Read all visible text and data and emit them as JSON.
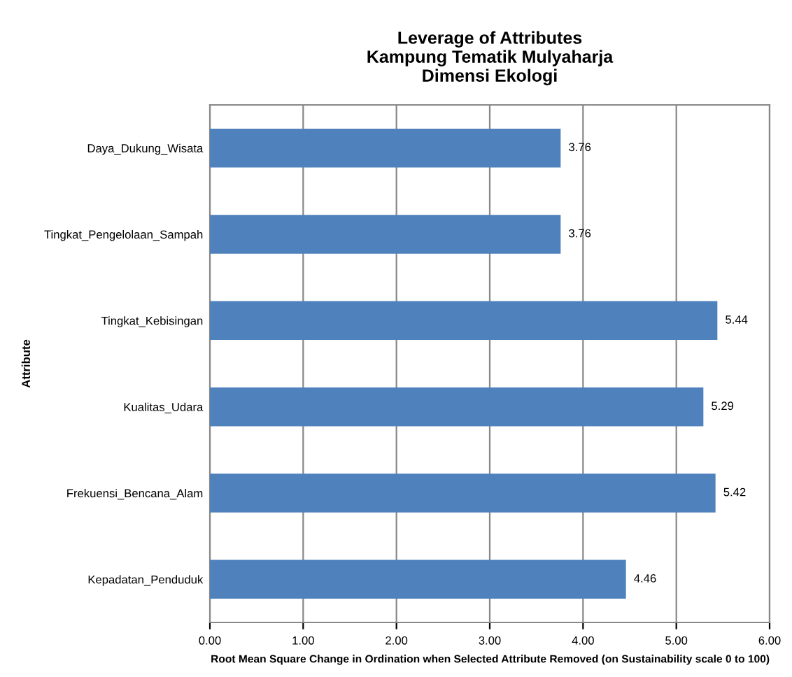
{
  "chart_data": {
    "type": "bar",
    "orientation": "horizontal",
    "title": "Leverage of Attributes\nKampung Tematik Mulyaharja\nDimensi Ekologi",
    "xlabel": "Root Mean Square Change in Ordination when Selected Attribute Removed (on Sustainability scale 0 to 100)",
    "ylabel": "Attribute",
    "categories": [
      "Daya_Dukung_Wisata",
      "Tingkat_Pengelolaan_Sampah",
      "Tingkat_Kebisingan",
      "Kualitas_Udara",
      "Frekuensi_Bencana_Alam",
      "Kepadatan_Penduduk"
    ],
    "values": [
      3.76,
      3.76,
      5.44,
      5.29,
      5.42,
      4.46
    ],
    "color": "#4f81bd",
    "xlim": [
      0,
      6
    ],
    "xticks": [
      {
        "value": 0,
        "label": "0.00"
      },
      {
        "value": 1,
        "label": "1.00"
      },
      {
        "value": 2,
        "label": "2.00"
      },
      {
        "value": 3,
        "label": "3.00"
      },
      {
        "value": 4,
        "label": "4.00"
      },
      {
        "value": 5,
        "label": "5.00"
      },
      {
        "value": 6,
        "label": "6.00"
      }
    ],
    "grid": "x",
    "data_labels": true,
    "legend": false
  }
}
